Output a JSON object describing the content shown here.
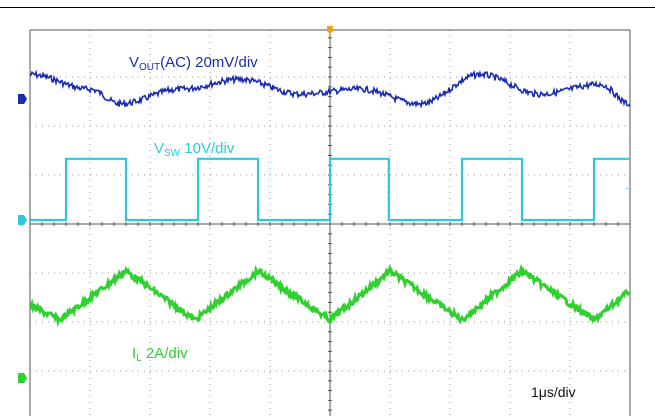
{
  "colors": {
    "vout": "#1a2db0",
    "vsw": "#2fc8d8",
    "il": "#2fd02f",
    "text": "#111111",
    "grid": "#9a9a9a",
    "trigger": "#f0a020"
  },
  "labels": {
    "vout_main": "V",
    "vout_sub": "OUT",
    "vout_rest": "(AC)  20mV/div",
    "vsw_main": "V",
    "vsw_sub": "SW",
    "vsw_rest": "  10V/div",
    "il_main": "I",
    "il_sub": "L",
    "il_rest": "  2A/div",
    "timebase": "1μs/div"
  },
  "chart_data": {
    "type": "line",
    "title": "",
    "xlabel": "",
    "ylabel": "",
    "grid": true,
    "x_divisions": 10,
    "y_divisions": 8,
    "xlim_us": [
      -5,
      5
    ],
    "series": [
      {
        "name": "VOUT(AC)",
        "scale": "20mV/div",
        "x_us": [
          -5.0,
          -4.0,
          -3.5,
          -2.5,
          -1.5,
          -0.5,
          0.5,
          1.5,
          2.5,
          3.5,
          4.5,
          5.0
        ],
        "values_mV": [
          10,
          4,
          -2,
          4,
          8,
          2,
          4,
          -2,
          10,
          2,
          6,
          -2
        ]
      },
      {
        "name": "VSW",
        "scale": "10V/div",
        "x_us": [
          -4.4,
          -4.4,
          -3.4,
          -3.4,
          -2.2,
          -2.2,
          -1.2,
          -1.2,
          0.0,
          0.0,
          0.98,
          0.98,
          2.2,
          2.2,
          3.2,
          3.2,
          4.4,
          4.4,
          5.0
        ],
        "values_V": [
          0,
          12.5,
          12.5,
          0,
          0,
          12.5,
          12.5,
          0,
          0,
          12.5,
          12.5,
          0,
          0,
          12.5,
          12.5,
          0,
          0,
          12.5,
          12.5
        ],
        "start_value_V": 0
      },
      {
        "name": "IL",
        "scale": "2A/div",
        "x_us": [
          -5.0,
          -4.5,
          -3.4,
          -2.25,
          -1.2,
          0.0,
          1.0,
          2.2,
          3.2,
          4.4,
          5.0
        ],
        "values_A": [
          0.6,
          0.0,
          2.0,
          0.0,
          2.0,
          0.0,
          2.0,
          0.0,
          2.0,
          0.0,
          1.2
        ]
      }
    ]
  }
}
